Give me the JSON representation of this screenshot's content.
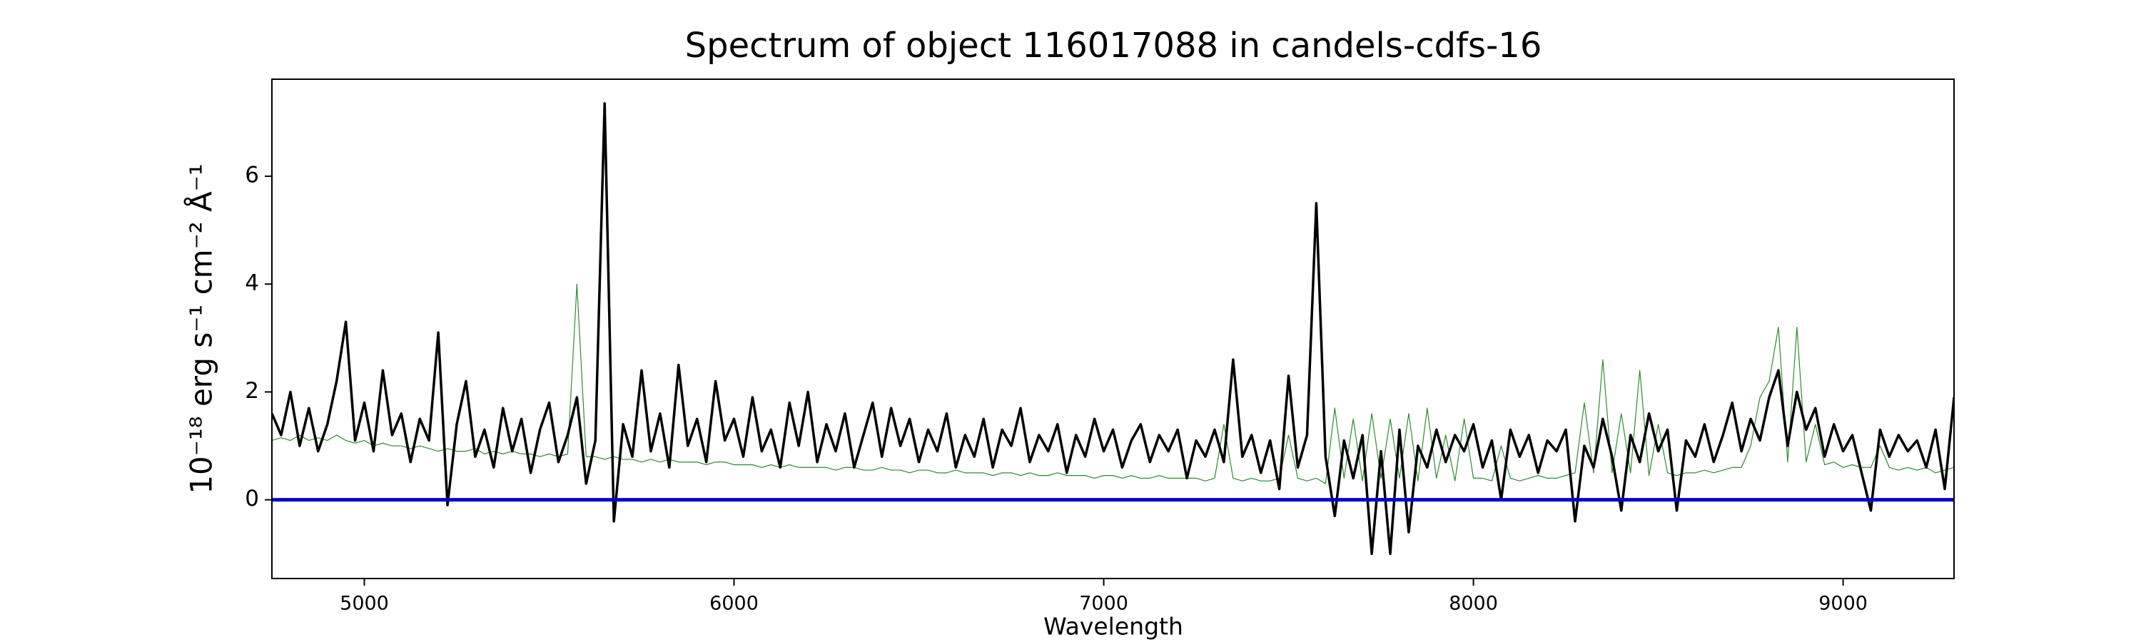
{
  "chart_data": {
    "type": "line",
    "title": "Spectrum of object 116017088 in candels-cdfs-16",
    "x_label": "Wavelength",
    "y_label": "10⁻¹⁸ erg s⁻¹ cm⁻² Å⁻¹",
    "x": [
      4750,
      4775,
      4800,
      4825,
      4850,
      4875,
      4900,
      4925,
      4950,
      4975,
      5000,
      5025,
      5050,
      5075,
      5100,
      5125,
      5150,
      5175,
      5200,
      5225,
      5250,
      5275,
      5300,
      5325,
      5350,
      5375,
      5400,
      5425,
      5450,
      5475,
      5500,
      5525,
      5550,
      5575,
      5600,
      5625,
      5650,
      5675,
      5700,
      5725,
      5750,
      5775,
      5800,
      5825,
      5850,
      5875,
      5900,
      5925,
      5950,
      5975,
      6000,
      6025,
      6050,
      6075,
      6100,
      6125,
      6150,
      6175,
      6200,
      6225,
      6250,
      6275,
      6300,
      6325,
      6350,
      6375,
      6400,
      6425,
      6450,
      6475,
      6500,
      6525,
      6550,
      6575,
      6600,
      6625,
      6650,
      6675,
      6700,
      6725,
      6750,
      6775,
      6800,
      6825,
      6850,
      6875,
      6900,
      6925,
      6950,
      6975,
      7000,
      7025,
      7050,
      7075,
      7100,
      7125,
      7150,
      7175,
      7200,
      7225,
      7250,
      7275,
      7300,
      7325,
      7350,
      7375,
      7400,
      7425,
      7450,
      7475,
      7500,
      7525,
      7550,
      7575,
      7600,
      7625,
      7650,
      7675,
      7700,
      7725,
      7750,
      7775,
      7800,
      7825,
      7850,
      7875,
      7900,
      7925,
      7950,
      7975,
      8000,
      8025,
      8050,
      8075,
      8100,
      8125,
      8150,
      8175,
      8200,
      8225,
      8250,
      8275,
      8300,
      8325,
      8350,
      8375,
      8400,
      8425,
      8450,
      8475,
      8500,
      8525,
      8550,
      8575,
      8600,
      8625,
      8650,
      8675,
      8700,
      8725,
      8750,
      8775,
      8800,
      8825,
      8850,
      8875,
      8900,
      8925,
      8950,
      8975,
      9000,
      9025,
      9050,
      9075,
      9100,
      9125,
      9150,
      9175,
      9200,
      9225,
      9250,
      9275,
      9300
    ],
    "series": [
      {
        "color": "#2e8b2e",
        "width": 1.2,
        "values": [
          1.1,
          1.15,
          1.1,
          1.2,
          1.1,
          1.15,
          1.1,
          1.2,
          1.1,
          1.05,
          1.1,
          1.0,
          1.05,
          1.0,
          1.0,
          0.95,
          1.0,
          0.95,
          0.9,
          0.95,
          0.9,
          0.9,
          0.95,
          0.85,
          0.9,
          0.85,
          0.9,
          0.85,
          0.85,
          0.8,
          0.85,
          0.8,
          0.85,
          4.0,
          0.8,
          0.8,
          0.75,
          0.8,
          0.75,
          0.75,
          0.7,
          0.75,
          0.7,
          0.75,
          0.7,
          0.7,
          0.7,
          0.65,
          0.7,
          0.7,
          0.65,
          0.65,
          0.65,
          0.6,
          0.65,
          0.6,
          0.65,
          0.6,
          0.6,
          0.6,
          0.6,
          0.55,
          0.6,
          0.6,
          0.55,
          0.55,
          0.6,
          0.55,
          0.55,
          0.5,
          0.55,
          0.55,
          0.5,
          0.5,
          0.55,
          0.5,
          0.5,
          0.5,
          0.45,
          0.5,
          0.5,
          0.45,
          0.5,
          0.45,
          0.45,
          0.5,
          0.45,
          0.45,
          0.45,
          0.4,
          0.45,
          0.45,
          0.4,
          0.45,
          0.4,
          0.4,
          0.45,
          0.4,
          0.4,
          0.4,
          0.4,
          0.35,
          0.4,
          1.4,
          0.4,
          0.35,
          0.4,
          0.35,
          0.35,
          0.4,
          1.2,
          0.4,
          0.35,
          0.4,
          0.3,
          1.7,
          0.4,
          1.5,
          0.35,
          1.6,
          0.4,
          1.5,
          0.4,
          1.6,
          0.35,
          1.7,
          0.4,
          1.2,
          0.35,
          1.5,
          0.4,
          0.4,
          0.35,
          1.0,
          0.4,
          0.35,
          0.4,
          0.45,
          0.4,
          0.4,
          0.45,
          0.5,
          1.8,
          0.5,
          2.6,
          0.5,
          1.6,
          0.5,
          2.4,
          0.45,
          1.4,
          0.5,
          0.45,
          0.5,
          0.5,
          0.55,
          0.5,
          0.55,
          0.6,
          0.6,
          1.0,
          1.9,
          2.2,
          3.2,
          0.7,
          3.2,
          0.7,
          1.4,
          0.65,
          0.7,
          0.6,
          0.65,
          0.6,
          0.6,
          1.0,
          0.6,
          0.55,
          0.6,
          0.55,
          0.6,
          0.5,
          0.55,
          0.6
        ]
      },
      {
        "color": "#000000",
        "width": 3.5,
        "values": [
          1.6,
          1.2,
          2.0,
          1.0,
          1.7,
          0.9,
          1.4,
          2.2,
          3.3,
          1.1,
          1.8,
          0.9,
          2.4,
          1.2,
          1.6,
          0.7,
          1.5,
          1.1,
          3.1,
          -0.1,
          1.4,
          2.2,
          0.8,
          1.3,
          0.6,
          1.7,
          0.9,
          1.5,
          0.5,
          1.3,
          1.8,
          0.7,
          1.2,
          1.9,
          0.3,
          1.1,
          7.35,
          -0.4,
          1.4,
          0.8,
          2.4,
          0.9,
          1.6,
          0.6,
          2.5,
          1.0,
          1.5,
          0.7,
          2.2,
          1.1,
          1.5,
          0.8,
          1.9,
          0.9,
          1.3,
          0.6,
          1.8,
          1.0,
          2.0,
          0.7,
          1.4,
          0.9,
          1.6,
          0.6,
          1.2,
          1.8,
          0.8,
          1.7,
          1.0,
          1.5,
          0.7,
          1.3,
          0.9,
          1.6,
          0.6,
          1.2,
          0.8,
          1.5,
          0.6,
          1.3,
          1.0,
          1.7,
          0.7,
          1.2,
          0.9,
          1.4,
          0.5,
          1.2,
          0.8,
          1.5,
          0.9,
          1.3,
          0.6,
          1.1,
          1.4,
          0.7,
          1.2,
          0.9,
          1.3,
          0.4,
          1.1,
          0.8,
          1.3,
          0.7,
          2.6,
          0.8,
          1.2,
          0.5,
          1.1,
          0.2,
          2.3,
          0.6,
          1.2,
          5.5,
          0.8,
          -0.3,
          1.1,
          0.4,
          1.2,
          -1.0,
          0.9,
          -1.0,
          1.3,
          -0.6,
          1.0,
          0.6,
          1.3,
          0.7,
          1.2,
          0.9,
          1.4,
          0.6,
          1.1,
          0.0,
          1.3,
          0.8,
          1.2,
          0.5,
          1.1,
          0.9,
          1.3,
          -0.4,
          1.0,
          0.6,
          1.5,
          0.8,
          -0.2,
          1.2,
          0.7,
          1.6,
          0.9,
          1.3,
          -0.2,
          1.1,
          0.8,
          1.4,
          0.7,
          1.2,
          1.8,
          0.9,
          1.5,
          1.1,
          1.9,
          2.4,
          1.0,
          2.0,
          1.3,
          1.7,
          0.8,
          1.4,
          0.9,
          1.2,
          0.5,
          -0.2,
          1.3,
          0.8,
          1.2,
          0.9,
          1.1,
          0.6,
          1.3,
          0.2,
          1.9
        ]
      }
    ],
    "hline": 0,
    "hline_color": "#0000cc",
    "xlim": [
      4750,
      9300
    ],
    "xticks": [
      5000,
      6000,
      7000,
      8000,
      9000
    ],
    "ylim": [
      -1.46,
      7.8
    ],
    "yticks": [
      0,
      2,
      4,
      6
    ]
  }
}
